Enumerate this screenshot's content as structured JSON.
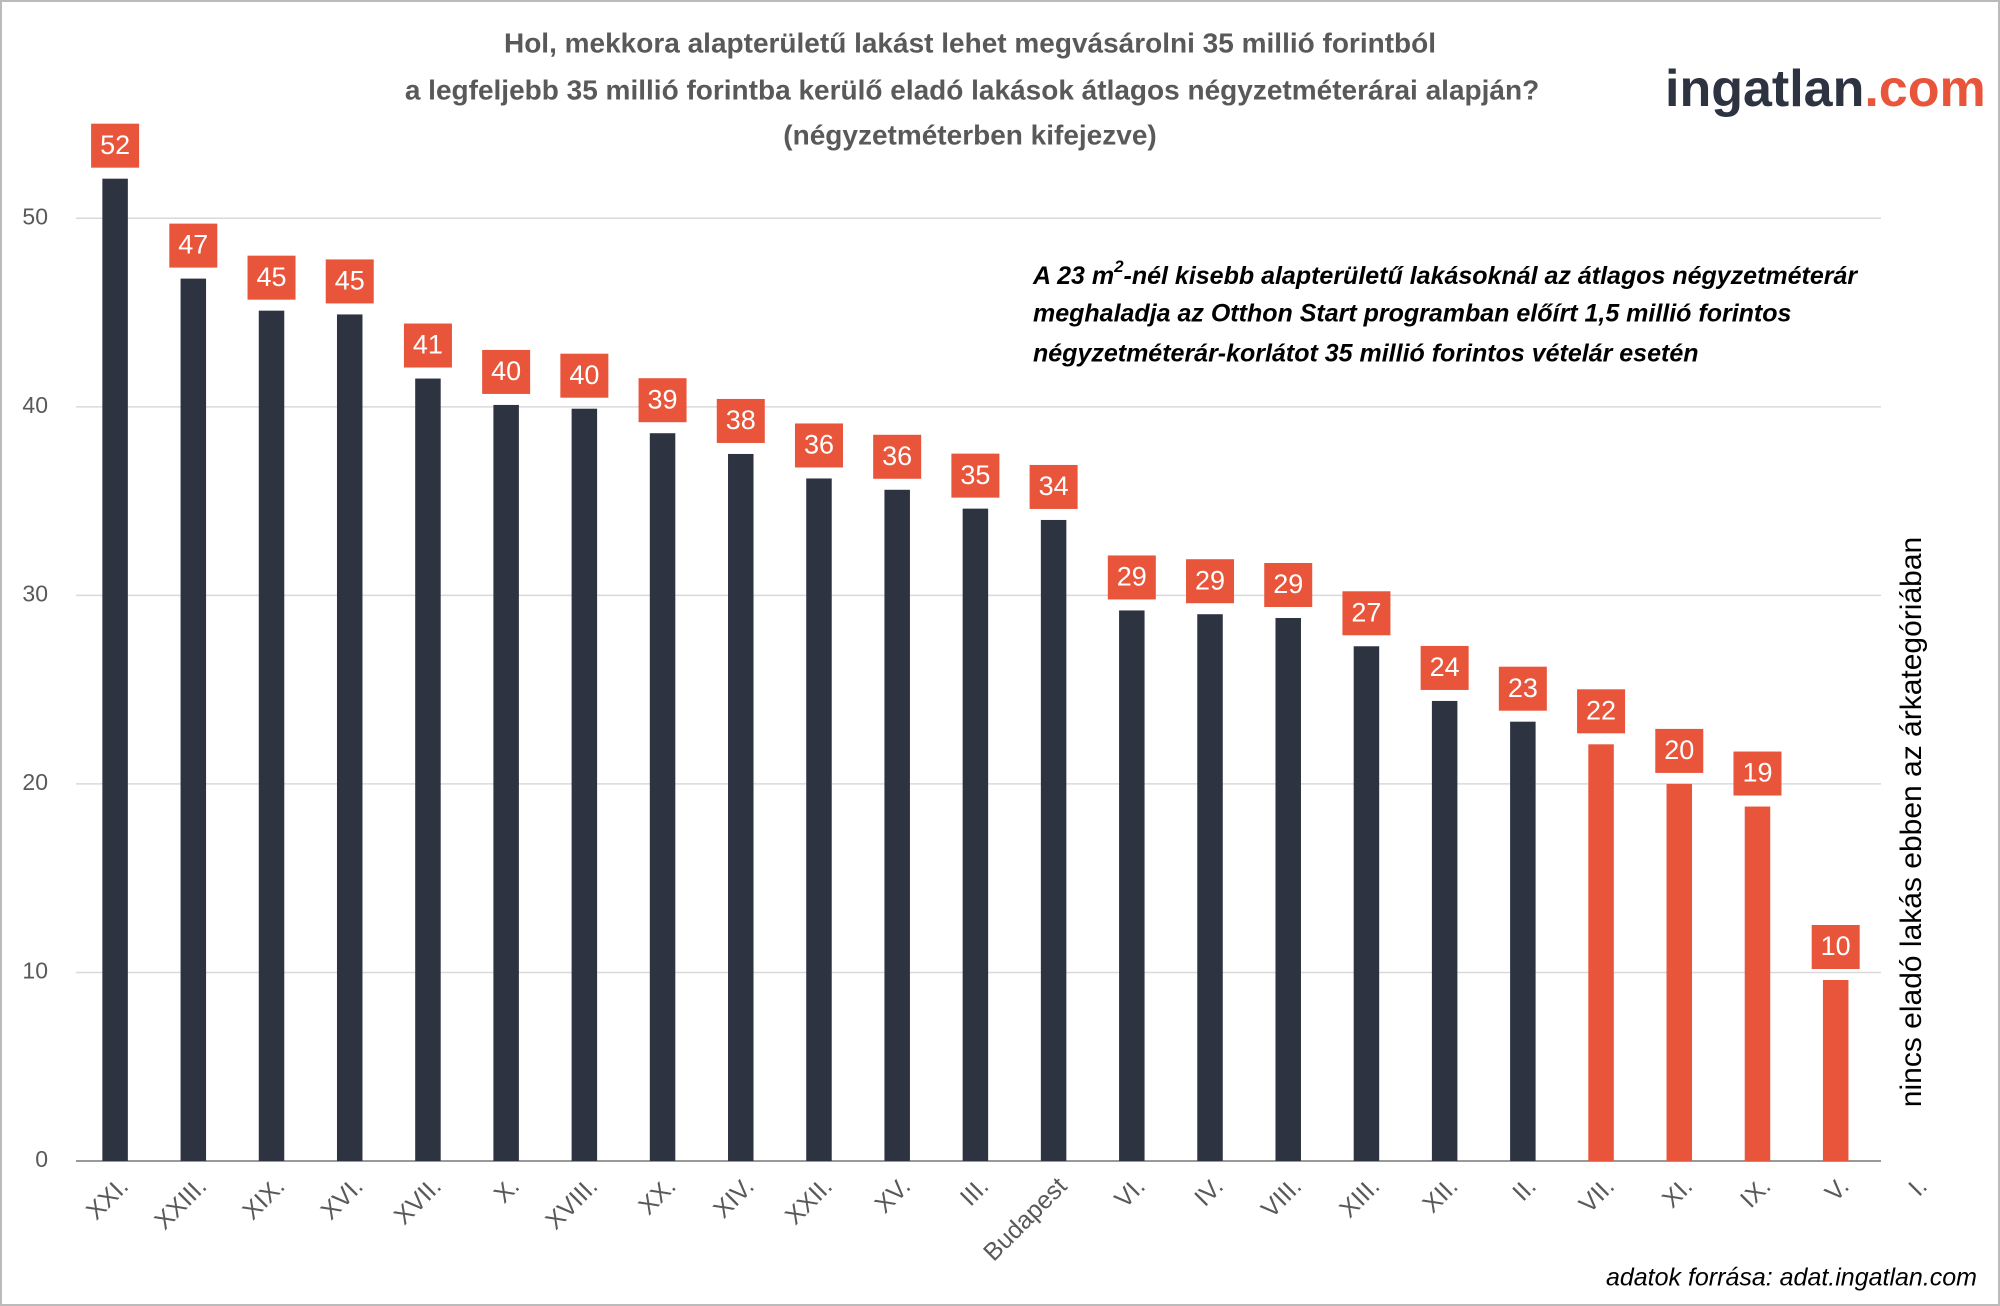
{
  "chart_data": {
    "type": "bar",
    "title": [
      "Hol, mekkora alapterületű lakást lehet megvásárolni 35 millió forintból",
      "a legfeljebb 35 millió forintba kerülő eladó lakások átlagos négyzetméterárai alapján?",
      "(négyzetméterben kifejezve)"
    ],
    "logo": [
      "ingatlan",
      ".com"
    ],
    "annotation": [
      "A 23 m",
      "2",
      "-nél kisebb alapterületű lakásoknál az átlagos négyzetméterár",
      "meghaladja az Otthon Start programban előírt 1,5 millió forintos",
      "négyzetméterár-korlátot 35 millió forintos vételár esetén"
    ],
    "note": "nincs eladó lakás ebben az árkategóriában",
    "source": "adatok forrása: adat.ingatlan.com",
    "categories": [
      "XXI.",
      "XXIII.",
      "XIX.",
      "XVI.",
      "XVII.",
      "X.",
      "XVIII.",
      "XX.",
      "XIV.",
      "XXII.",
      "XV.",
      "III.",
      "Budapest",
      "VI.",
      "IV.",
      "VIII.",
      "XIII.",
      "XII.",
      "II.",
      "VII.",
      "XI.",
      "IX.",
      "V.",
      "I."
    ],
    "values": [
      52.1,
      46.8,
      45.1,
      44.9,
      41.5,
      40.1,
      39.9,
      38.6,
      37.5,
      36.2,
      35.6,
      34.6,
      34.0,
      29.2,
      29.0,
      28.8,
      27.3,
      24.4,
      23.3,
      22.1,
      20.0,
      18.8,
      9.6,
      null
    ],
    "value_labels": [
      "52",
      "47",
      "45",
      "45",
      "41",
      "40",
      "40",
      "39",
      "38",
      "36",
      "36",
      "35",
      "34",
      "29",
      "29",
      "29",
      "27",
      "24",
      "23",
      "22",
      "20",
      "19",
      "10",
      null
    ],
    "colors": [
      "#2e3342",
      "#2e3342",
      "#2e3342",
      "#2e3342",
      "#2e3342",
      "#2e3342",
      "#2e3342",
      "#2e3342",
      "#2e3342",
      "#2e3342",
      "#2e3342",
      "#2e3342",
      "#2e3342",
      "#2e3342",
      "#2e3342",
      "#2e3342",
      "#2e3342",
      "#2e3342",
      "#2e3342",
      "#e8553a",
      "#e8553a",
      "#e8553a",
      "#e8553a",
      "#e8553a"
    ],
    "label_color": "#e8553a",
    "ylim": [
      0,
      55
    ],
    "yticks": [
      0,
      10,
      20,
      30,
      40,
      50
    ],
    "grid": true
  }
}
